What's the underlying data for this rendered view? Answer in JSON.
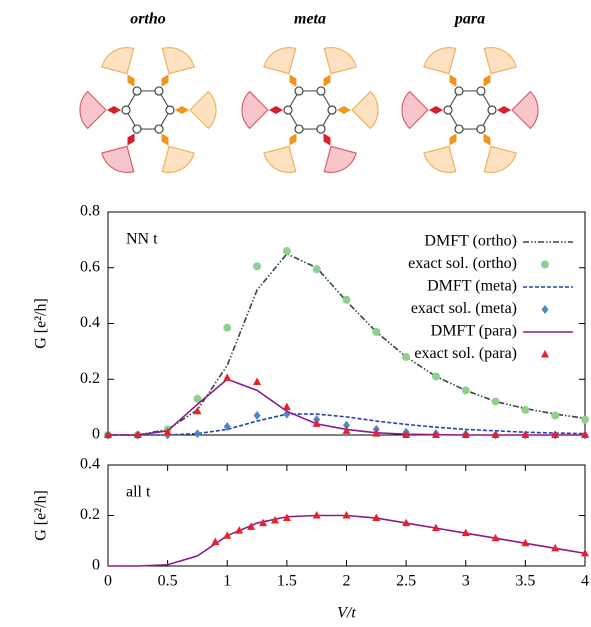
{
  "diagrams": [
    {
      "label": "ortho"
    },
    {
      "label": "meta"
    },
    {
      "label": "para"
    }
  ],
  "chart_data": [
    {
      "type": "line",
      "annotation": "NN t",
      "ylabel": "G [e²/h]",
      "xlim": [
        0,
        4
      ],
      "ylim": [
        0,
        0.8
      ],
      "yticks": [
        0,
        0.2,
        0.4,
        0.6,
        0.8
      ],
      "legend": "upper right",
      "series": [
        {
          "name": "DMFT (ortho)",
          "color": "#2e4a3a",
          "style": "dashdot",
          "x": [
            0,
            0.25,
            0.5,
            0.75,
            1,
            1.25,
            1.5,
            1.75,
            2,
            2.25,
            2.5,
            2.75,
            3,
            3.25,
            3.5,
            3.75,
            4
          ],
          "values": [
            0,
            0,
            0.02,
            0.09,
            0.25,
            0.52,
            0.65,
            0.6,
            0.48,
            0.37,
            0.28,
            0.21,
            0.16,
            0.12,
            0.095,
            0.075,
            0.06
          ]
        },
        {
          "name": "exact sol. (ortho)",
          "color": "#8fcf8f",
          "marker": "circle",
          "x": [
            0,
            0.25,
            0.5,
            0.75,
            1,
            1.25,
            1.5,
            1.75,
            2,
            2.25,
            2.5,
            2.75,
            3,
            3.25,
            3.5,
            3.75,
            4
          ],
          "values": [
            0,
            0,
            0.02,
            0.13,
            0.385,
            0.605,
            0.66,
            0.595,
            0.485,
            0.37,
            0.28,
            0.21,
            0.16,
            0.12,
            0.09,
            0.07,
            0.055
          ]
        },
        {
          "name": "DMFT (meta)",
          "color": "#2244aa",
          "style": "dashed",
          "x": [
            0,
            0.25,
            0.5,
            0.75,
            1,
            1.25,
            1.5,
            1.75,
            2,
            2.25,
            2.5,
            2.75,
            3,
            3.25,
            3.5,
            3.75,
            4
          ],
          "values": [
            0,
            0,
            0,
            0.005,
            0.02,
            0.05,
            0.075,
            0.075,
            0.065,
            0.05,
            0.038,
            0.028,
            0.02,
            0.015,
            0.01,
            0.007,
            0.005
          ]
        },
        {
          "name": "exact sol. (meta)",
          "color": "#4a86c8",
          "marker": "diamond",
          "x": [
            0,
            0.25,
            0.5,
            0.75,
            1,
            1.25,
            1.5,
            1.75,
            2,
            2.25,
            2.5,
            2.75,
            3,
            3.25,
            3.5,
            3.75,
            4
          ],
          "values": [
            0,
            0,
            0,
            0.005,
            0.03,
            0.07,
            0.075,
            0.055,
            0.035,
            0.02,
            0.01,
            0.005,
            0.003,
            0,
            0,
            0,
            0
          ]
        },
        {
          "name": "DMFT (para)",
          "color": "#8b1a8b",
          "style": "solid",
          "x": [
            0,
            0.25,
            0.5,
            0.75,
            1,
            1.25,
            1.5,
            1.75,
            2,
            2.25,
            2.5,
            2.75,
            3,
            3.25,
            3.5,
            3.75,
            4
          ],
          "values": [
            0,
            0,
            0.015,
            0.11,
            0.2,
            0.16,
            0.085,
            0.04,
            0.02,
            0.008,
            0.003,
            0.001,
            0,
            0,
            0,
            0,
            0
          ]
        },
        {
          "name": "exact sol. (para)",
          "color": "#e8202a",
          "marker": "triangle",
          "x": [
            0,
            0.25,
            0.5,
            0.75,
            1,
            1.25,
            1.5,
            1.75,
            2,
            2.25,
            2.5,
            2.75,
            3,
            3.25,
            3.5,
            3.75,
            4
          ],
          "values": [
            0,
            0,
            0.01,
            0.085,
            0.205,
            0.19,
            0.1,
            0.04,
            0.015,
            0.005,
            0,
            0,
            0,
            0,
            0,
            0,
            0
          ]
        }
      ]
    },
    {
      "type": "line",
      "annotation": "all t",
      "ylabel": "G [e²/h]",
      "xlabel": "V/t",
      "xlim": [
        0,
        4
      ],
      "ylim": [
        0,
        0.4
      ],
      "yticks": [
        0,
        0.2,
        0.4
      ],
      "xticks": [
        0,
        0.5,
        1,
        1.5,
        2,
        2.5,
        3,
        3.5,
        4
      ],
      "series": [
        {
          "color": "#8b1a8b",
          "style": "solid",
          "x": [
            0,
            0.25,
            0.5,
            0.75,
            1,
            1.25,
            1.5,
            1.75,
            2,
            2.25,
            2.5,
            2.75,
            3,
            3.25,
            3.5,
            3.75,
            4
          ],
          "values": [
            0,
            0,
            0.005,
            0.04,
            0.12,
            0.17,
            0.195,
            0.2,
            0.2,
            0.19,
            0.17,
            0.15,
            0.13,
            0.11,
            0.09,
            0.07,
            0.05
          ]
        },
        {
          "color": "#e8202a",
          "marker": "triangle",
          "x": [
            0.9,
            1,
            1.1,
            1.2,
            1.3,
            1.4,
            1.5,
            1.75,
            2,
            2.25,
            2.5,
            2.75,
            3,
            3.25,
            3.5,
            3.75,
            4
          ],
          "values": [
            0.095,
            0.12,
            0.14,
            0.155,
            0.17,
            0.18,
            0.19,
            0.2,
            0.2,
            0.19,
            0.17,
            0.15,
            0.13,
            0.11,
            0.09,
            0.07,
            0.05
          ]
        }
      ]
    }
  ]
}
